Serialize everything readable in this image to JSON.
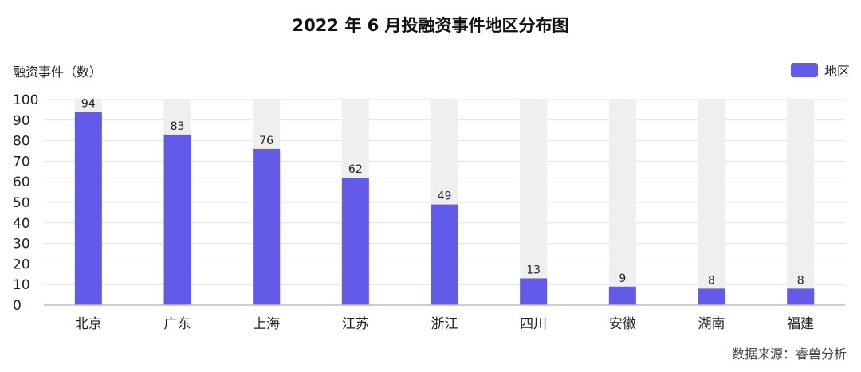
{
  "colors": {
    "bar": "#625BEA",
    "track": "#EFEFEF",
    "grid": "#E2E2E2",
    "axis": "#BDBDBD"
  },
  "chart_data": {
    "type": "bar",
    "title": "2022 年 6 月投融资事件地区分布图",
    "ylabel": "融资事件（数）",
    "xlabel": "",
    "categories": [
      "北京",
      "广东",
      "上海",
      "江苏",
      "浙江",
      "四川",
      "安徽",
      "湖南",
      "福建"
    ],
    "series": [
      {
        "name": "地区",
        "values": [
          94,
          83,
          76,
          62,
          49,
          13,
          9,
          8,
          8
        ]
      }
    ],
    "ylim": [
      0,
      100
    ],
    "yticks": [
      0,
      10,
      20,
      30,
      40,
      50,
      60,
      70,
      80,
      90,
      100
    ],
    "grid": true,
    "legend_position": "top-right",
    "source": "数据来源：睿兽分析"
  }
}
